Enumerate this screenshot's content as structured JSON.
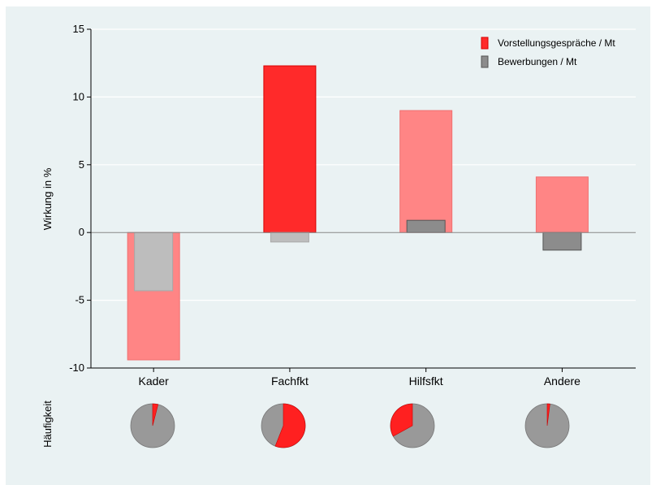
{
  "chart_data": {
    "type": "bar",
    "ylabel": "Wirkung in %",
    "pie_row_label": "Häufigkeit",
    "ylim": [
      -10,
      15
    ],
    "yticks": [
      -10,
      -5,
      0,
      5,
      10,
      15
    ],
    "categories": [
      "Kader",
      "Fachfkt",
      "Hilfsfkt",
      "Andere"
    ],
    "legend_position": "top-right",
    "grid": true,
    "series": [
      {
        "name": "Vorstellungsgespräche / Mt",
        "values": [
          -9.4,
          12.3,
          9.0,
          4.1
        ],
        "significant": [
          false,
          true,
          false,
          false
        ],
        "color": "#ff2a2a",
        "color_faded": "#ff8585"
      },
      {
        "name": "Bewerbungen / Mt",
        "values": [
          -4.3,
          -0.7,
          0.9,
          -1.3
        ],
        "significant": [
          false,
          false,
          true,
          true
        ],
        "color": "#8c8c8c",
        "color_faded": "#bdbdbd"
      }
    ],
    "pies": [
      {
        "category": "Kader",
        "share": 0.04
      },
      {
        "category": "Fachfkt",
        "share": 0.56
      },
      {
        "category": "Hilfsfkt",
        "share": 0.33
      },
      {
        "category": "Andere",
        "share": 0.02
      }
    ],
    "pie_colors": {
      "share": "#ff2020",
      "rest": "#999999"
    }
  }
}
